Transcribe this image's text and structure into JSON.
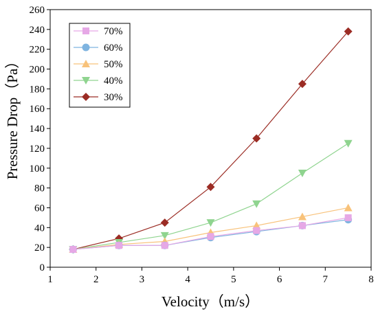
{
  "chart_data": {
    "type": "line",
    "xlabel": "Velocity（m/s）",
    "ylabel": "Pressure Drop（Pa）",
    "xlim": [
      1,
      8
    ],
    "ylim": [
      0,
      260
    ],
    "x_ticks": [
      1,
      2,
      3,
      4,
      5,
      6,
      7,
      8
    ],
    "y_ticks": [
      0,
      20,
      40,
      60,
      80,
      100,
      120,
      140,
      160,
      180,
      200,
      220,
      240,
      260
    ],
    "grid": false,
    "legend_position": "top-left",
    "x": [
      1.5,
      2.5,
      3.5,
      4.5,
      5.5,
      6.5,
      7.5
    ],
    "series": [
      {
        "name": "70%",
        "marker": "square",
        "color": "#e6a8e6",
        "values": [
          18,
          22,
          22,
          31,
          37,
          42,
          50
        ]
      },
      {
        "name": "60%",
        "marker": "circle",
        "color": "#7fb4e0",
        "values": [
          18,
          22,
          22,
          30,
          36,
          42,
          48
        ]
      },
      {
        "name": "50%",
        "marker": "triangle-up",
        "color": "#f8c27a",
        "values": [
          18,
          23,
          26,
          35,
          42,
          51,
          60
        ]
      },
      {
        "name": "40%",
        "marker": "triangle-down",
        "color": "#8fd48f",
        "values": [
          18,
          25,
          32,
          45,
          64,
          95,
          125
        ]
      },
      {
        "name": "30%",
        "marker": "diamond",
        "color": "#9b2c24",
        "values": [
          18,
          29,
          45,
          81,
          130,
          185,
          238
        ]
      }
    ]
  }
}
